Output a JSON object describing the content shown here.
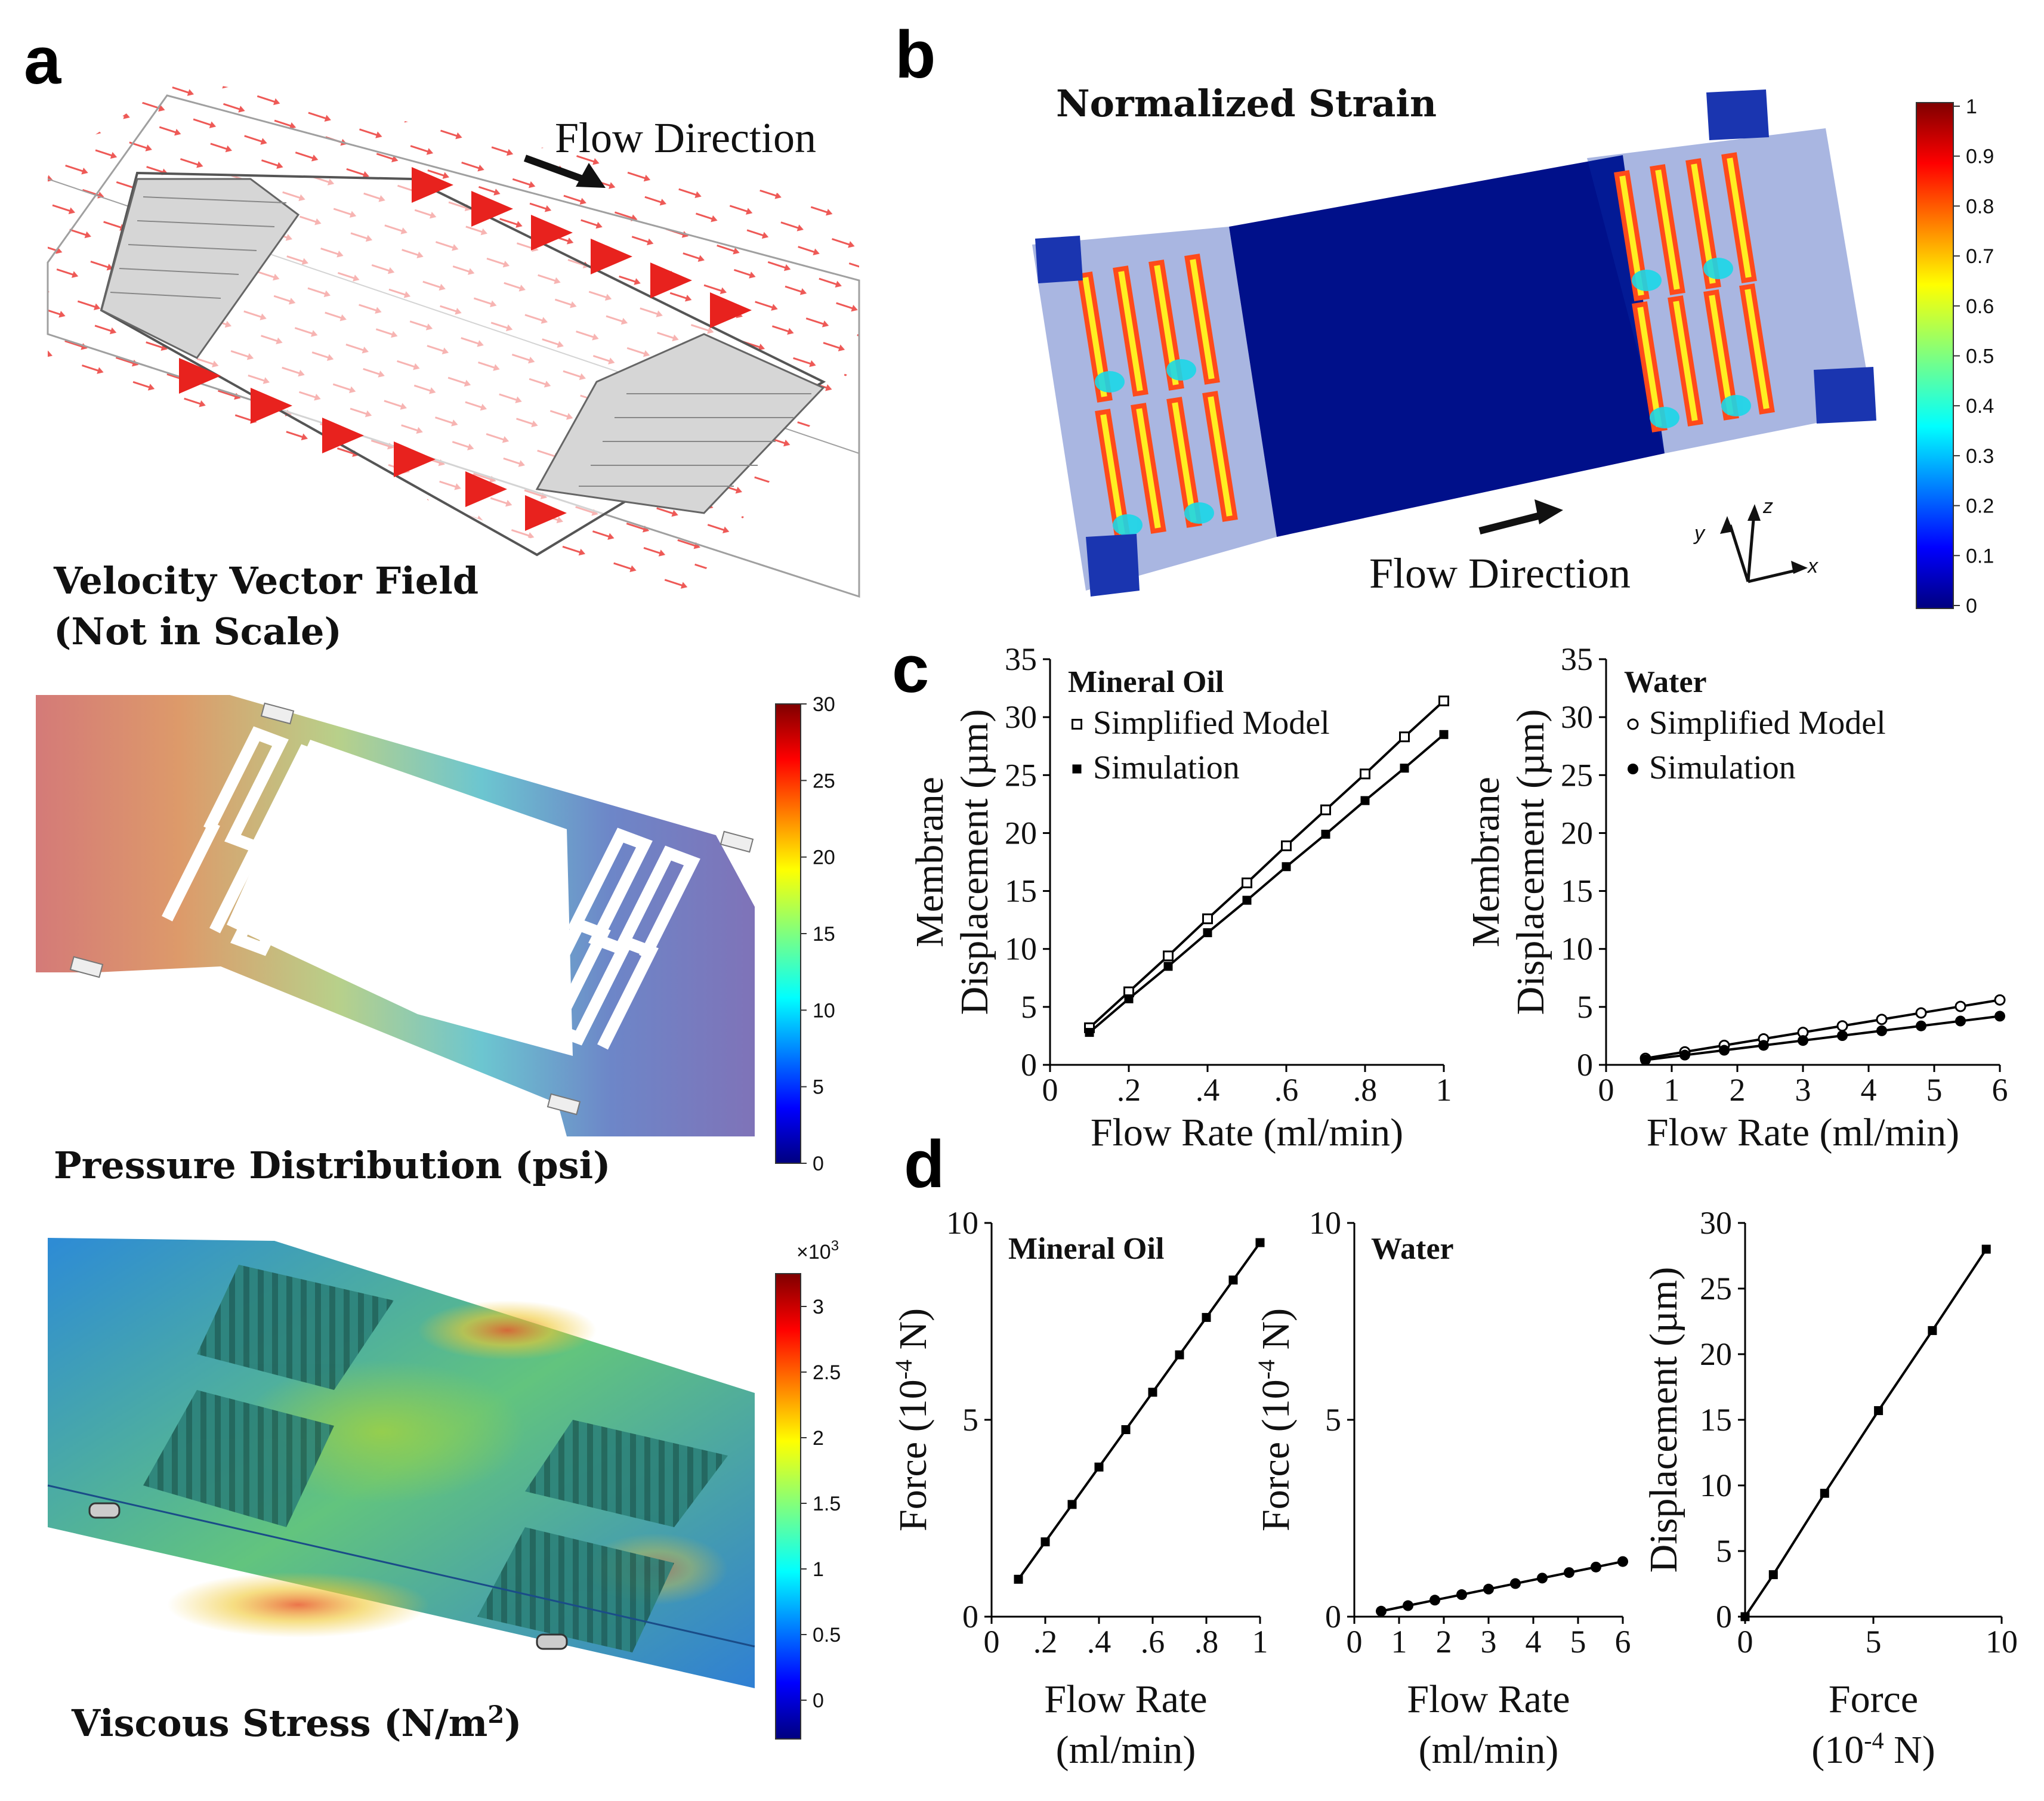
{
  "panel_labels": {
    "a": "a",
    "b": "b",
    "c": "c",
    "d": "d"
  },
  "panel_a": {
    "velocity_title_line1": "Velocity Vector Field",
    "velocity_title_line2": "(Not in Scale)",
    "flow_direction": "Flow Direction",
    "pressure_title": "Pressure Distribution (psi)",
    "pressure_colorbar_ticks": [
      "30",
      "25",
      "20",
      "15",
      "10",
      "5",
      "0"
    ],
    "viscous_title": "Viscous Stress (N/m",
    "viscous_title_sup": "2",
    "viscous_title_end": ")",
    "viscous_multiplier": "×10",
    "viscous_multiplier_exp": "3",
    "viscous_colorbar_ticks": [
      "3",
      "2.5",
      "2",
      "1.5",
      "1",
      "0.5",
      "0"
    ]
  },
  "panel_b": {
    "title": "Normalized Strain",
    "flow_direction": "Flow Direction",
    "axis_y": "y",
    "axis_z": "z",
    "axis_x": "x",
    "colorbar_ticks": [
      "1",
      "0.9",
      "0.8",
      "0.7",
      "0.6",
      "0.5",
      "0.4",
      "0.3",
      "0.2",
      "0.1",
      "0"
    ]
  },
  "colors": {
    "jet_top": "#7f0000",
    "jet_red": "#ff0000",
    "jet_yellow": "#ffff00",
    "jet_cyan": "#00ffff",
    "jet_blue": "#0000ff",
    "jet_bottom": "#00007f",
    "membrane_blue": "#00108a",
    "vector_red": "#e8221e"
  },
  "chart_data": [
    {
      "id": "c-mineral-oil",
      "type": "line",
      "title": "Mineral Oil",
      "xlabel": "Flow Rate (ml/min)",
      "ylabel_line1": "Membrane",
      "ylabel_line2": "Displacement (µm)",
      "xlim": [
        0,
        1
      ],
      "ylim": [
        0,
        35
      ],
      "xticks": [
        "0",
        ".2",
        ".4",
        ".6",
        ".8",
        "1"
      ],
      "yticks": [
        "0",
        "5",
        "10",
        "15",
        "20",
        "25",
        "30",
        "35"
      ],
      "x": [
        0.1,
        0.2,
        0.3,
        0.4,
        0.5,
        0.6,
        0.7,
        0.8,
        0.9,
        1.0
      ],
      "series": [
        {
          "name": "Simplified Model",
          "marker": "open-square",
          "values": [
            3.2,
            6.3,
            9.4,
            12.6,
            15.7,
            18.9,
            22.0,
            25.1,
            28.3,
            31.4
          ]
        },
        {
          "name": "Simulation",
          "marker": "filled-square",
          "values": [
            2.8,
            5.7,
            8.5,
            11.4,
            14.2,
            17.1,
            19.9,
            22.8,
            25.6,
            28.5
          ]
        }
      ]
    },
    {
      "id": "c-water",
      "type": "line",
      "title": "Water",
      "xlabel": "Flow Rate (ml/min)",
      "ylabel_line1": "Membrane",
      "ylabel_line2": "Displacement (µm)",
      "xlim": [
        0,
        6
      ],
      "ylim": [
        0,
        35
      ],
      "xticks": [
        "0",
        "1",
        "2",
        "3",
        "4",
        "5",
        "6"
      ],
      "yticks": [
        "0",
        "5",
        "10",
        "15",
        "20",
        "25",
        "30",
        "35"
      ],
      "x": [
        0.6,
        1.2,
        1.8,
        2.4,
        3.0,
        3.6,
        4.2,
        4.8,
        5.4,
        6.0
      ],
      "series": [
        {
          "name": "Simplified Model",
          "marker": "open-circle",
          "values": [
            0.56,
            1.12,
            1.68,
            2.24,
            2.8,
            3.36,
            3.92,
            4.48,
            5.04,
            5.6
          ]
        },
        {
          "name": "Simulation",
          "marker": "filled-circle",
          "values": [
            0.42,
            0.84,
            1.26,
            1.68,
            2.1,
            2.52,
            2.94,
            3.36,
            3.78,
            4.2
          ]
        }
      ]
    },
    {
      "id": "d-mineral-oil",
      "type": "line",
      "title": "Mineral Oil",
      "xlabel_line1": "Flow Rate",
      "xlabel_line2": "(ml/min)",
      "ylabel_pre": "Force (10",
      "ylabel_sup": "-4",
      "ylabel_post": " N)",
      "xlim": [
        0,
        1
      ],
      "ylim": [
        0,
        10
      ],
      "xticks": [
        "0",
        ".2",
        ".4",
        ".6",
        ".8",
        "1"
      ],
      "yticks": [
        "0",
        "5",
        "10"
      ],
      "x": [
        0.1,
        0.2,
        0.3,
        0.4,
        0.5,
        0.6,
        0.7,
        0.8,
        0.9,
        1.0
      ],
      "series": [
        {
          "name": "Force",
          "marker": "filled-square",
          "values": [
            0.95,
            1.9,
            2.85,
            3.8,
            4.75,
            5.7,
            6.65,
            7.6,
            8.55,
            9.5
          ]
        }
      ]
    },
    {
      "id": "d-water",
      "type": "line",
      "title": "Water",
      "xlabel_line1": "Flow Rate",
      "xlabel_line2": "(ml/min)",
      "ylabel_pre": "Force (10",
      "ylabel_sup": "-4",
      "ylabel_post": " N)",
      "xlim": [
        0,
        6
      ],
      "ylim": [
        0,
        10
      ],
      "xticks": [
        "0",
        "1",
        "2",
        "3",
        "4",
        "5",
        "6"
      ],
      "yticks": [
        "0",
        "5",
        "10"
      ],
      "x": [
        0.6,
        1.2,
        1.8,
        2.4,
        3.0,
        3.6,
        4.2,
        4.8,
        5.4,
        6.0
      ],
      "series": [
        {
          "name": "Force",
          "marker": "filled-circle",
          "values": [
            0.14,
            0.28,
            0.42,
            0.56,
            0.7,
            0.84,
            0.98,
            1.12,
            1.26,
            1.4
          ]
        }
      ]
    },
    {
      "id": "d-displacement",
      "type": "line",
      "title": "",
      "xlabel_line1": "Force",
      "xlabel_pre": "(10",
      "xlabel_sup": "-4",
      "xlabel_post": " N)",
      "ylabel": "Displacement (µm)",
      "xlim": [
        0,
        10
      ],
      "ylim": [
        0,
        30
      ],
      "xticks": [
        "0",
        "5",
        "10"
      ],
      "yticks": [
        "0",
        "5",
        "10",
        "15",
        "20",
        "25",
        "30"
      ],
      "x": [
        0,
        1.1,
        3.1,
        5.2,
        7.3,
        9.4
      ],
      "series": [
        {
          "name": "Displacement",
          "marker": "filled-square",
          "values": [
            0,
            3.2,
            9.4,
            15.7,
            21.8,
            28.0
          ]
        }
      ]
    }
  ]
}
